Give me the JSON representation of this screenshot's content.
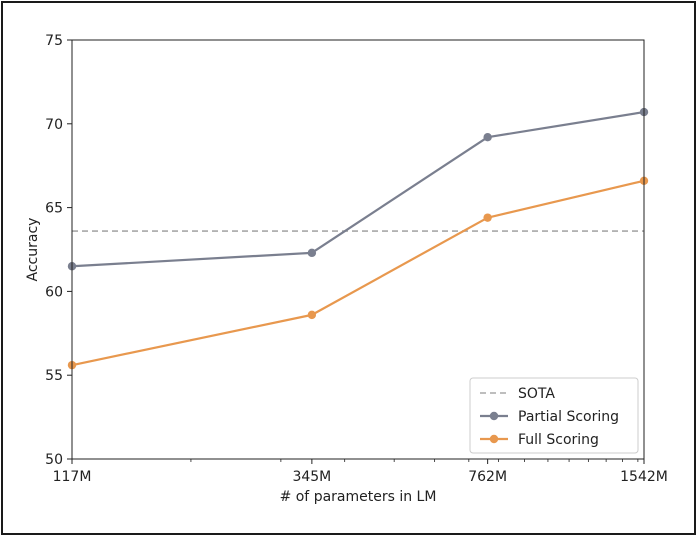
{
  "chart_data": {
    "type": "line",
    "title": "",
    "xlabel": "# of parameters in LM",
    "ylabel": "Accuracy",
    "categories": [
      "117M",
      "345M",
      "762M",
      "1542M"
    ],
    "x": [
      117,
      345,
      762,
      1542
    ],
    "x_scale": "log",
    "ylim": [
      50,
      75
    ],
    "yticks": [
      50,
      55,
      60,
      65,
      70,
      75
    ],
    "grid": false,
    "legend_position": "bottom-right",
    "series": [
      {
        "name": "Partial Scoring",
        "values": [
          61.5,
          62.3,
          69.2,
          70.7
        ],
        "color": "#7a7f8f",
        "marker": "circle"
      },
      {
        "name": "Full Scoring",
        "values": [
          55.6,
          58.6,
          64.4,
          66.6
        ],
        "color": "#e8984e",
        "marker": "circle"
      }
    ],
    "reference_lines": [
      {
        "name": "SOTA",
        "value": 63.6,
        "color": "#a8a8a8",
        "style": "dashed"
      }
    ],
    "legend": [
      "SOTA",
      "Partial Scoring",
      "Full Scoring"
    ]
  }
}
